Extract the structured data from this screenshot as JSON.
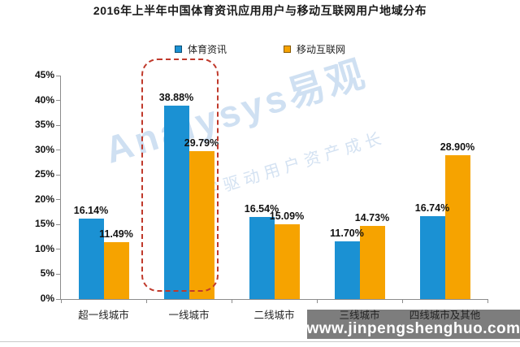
{
  "title": "2016年上半年中国体育资讯应用用户与移动互联网用户地域分布",
  "legend": [
    {
      "label": "体育资讯",
      "color": "#1b91d3"
    },
    {
      "label": "移动互联网",
      "color": "#f6a300"
    }
  ],
  "watermark": {
    "brand": "Analysys易观",
    "tagline": "数字驱动用户资产成长"
  },
  "footer": {
    "url": "www.jinpengshenghuo.com"
  },
  "colors": {
    "series1": "#1b91d3",
    "series2": "#f6a300",
    "highlight_box": "#c0392b",
    "watermark_text": "#cfe0f2",
    "footer_bar_bg": "#7d7d7d"
  },
  "chart_data": {
    "type": "bar",
    "title": "2016年上半年中国体育资讯应用用户与移动互联网用户地域分布",
    "categories": [
      "超一线城市",
      "一线城市",
      "二线城市",
      "三线城市",
      "四线城市及其他"
    ],
    "series": [
      {
        "name": "体育资讯",
        "color": "#1b91d3",
        "values": [
          16.14,
          38.88,
          16.54,
          11.7,
          16.74
        ]
      },
      {
        "name": "移动互联网",
        "color": "#f6a300",
        "values": [
          11.49,
          29.79,
          15.09,
          14.73,
          28.9
        ]
      }
    ],
    "value_labels": [
      [
        "16.14%",
        "38.88%",
        "16.54%",
        "11.70%",
        "16.74%"
      ],
      [
        "11.49%",
        "29.79%",
        "15.09%",
        "14.73%",
        "28.90%"
      ]
    ],
    "xlabel": "",
    "ylabel": "",
    "ylim": [
      0,
      45
    ],
    "ytick_step": 5,
    "yticks": [
      "0%",
      "5%",
      "10%",
      "15%",
      "20%",
      "25%",
      "30%",
      "35%",
      "40%",
      "45%"
    ],
    "grid": false,
    "legend_position": "top",
    "highlight": {
      "category": "一线城市",
      "style": "red dashed rounded box"
    }
  }
}
